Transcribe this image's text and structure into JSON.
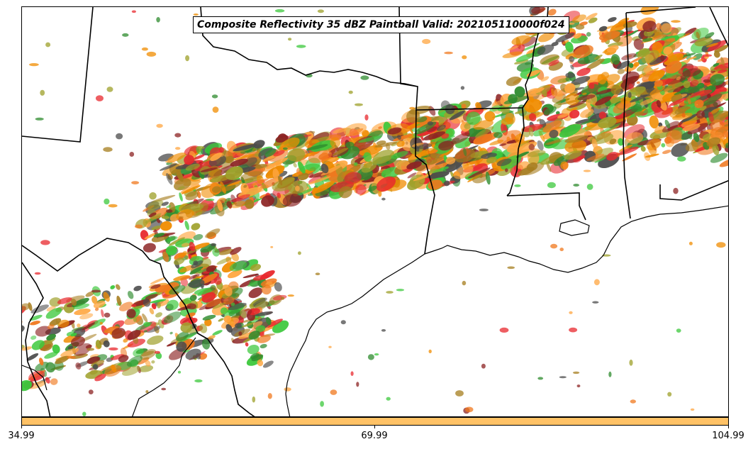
{
  "title": "Composite Reflectivity 35 dBZ Paintball Valid: 202105110000f024",
  "colorbar": {
    "color": "#ffc266",
    "ticks": [
      "34.99",
      "69.99",
      "104.99"
    ]
  },
  "paintball_colors": [
    "#e8282d",
    "#f0781e",
    "#ffa640",
    "#3cc83c",
    "#2e8b2e",
    "#a67d1e",
    "#9ea02a",
    "#8c2323",
    "#4b4b4b",
    "#f08c00"
  ],
  "map_features": [
    "state-borders",
    "coastline",
    "country-border"
  ]
}
